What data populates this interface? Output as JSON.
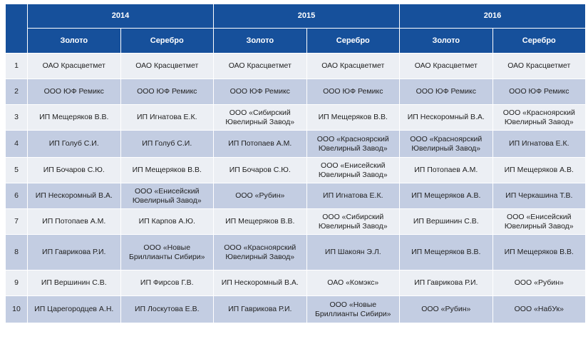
{
  "years": [
    "2014",
    "2015",
    "2016"
  ],
  "metals": [
    "Золото",
    "Серебро"
  ],
  "rows": [
    {
      "num": "1",
      "cells": [
        "ОАО Красцветмет",
        "ОАО Красцветмет",
        "ОАО Красцветмет",
        "ОАО Красцветмет",
        "ОАО Красцветмет",
        "ОАО Красцветмет"
      ]
    },
    {
      "num": "2",
      "cells": [
        "ООО ЮФ Ремикс",
        "ООО ЮФ Ремикс",
        "ООО ЮФ Ремикс",
        "ООО ЮФ Ремикс",
        "ООО ЮФ Ремикс",
        "ООО ЮФ Ремикс"
      ]
    },
    {
      "num": "3",
      "cells": [
        "ИП Мещеряков В.В.",
        "ИП Игнатова Е.К.",
        "ООО «Сибирский Ювелирный Завод»",
        "ИП Мещеряков В.В.",
        "ИП Нескоромный В.А.",
        "ООО «Красноярский Ювелирный Завод»"
      ]
    },
    {
      "num": "4",
      "cells": [
        "ИП Голуб С.И.",
        "ИП Голуб С.И.",
        "ИП Потопаев А.М.",
        "ООО «Красноярский Ювелирный Завод»",
        "ООО «Красноярский Ювелирный Завод»",
        "ИП Игнатова Е.К."
      ]
    },
    {
      "num": "5",
      "cells": [
        "ИП Бочаров С.Ю.",
        "ИП Мещеряков В.В.",
        "ИП Бочаров С.Ю.",
        "ООО «Енисейский Ювелирный Завод»",
        "ИП Потопаев А.М.",
        "ИП Мещеряков А.В."
      ]
    },
    {
      "num": "6",
      "cells": [
        "ИП Нескоромный В.А.",
        "ООО «Енисейский Ювелирный Завод»",
        "ООО «Рубин»",
        "ИП Игнатова Е.К.",
        "ИП Мещеряков А.В.",
        "ИП Черкашина Т.В."
      ]
    },
    {
      "num": "7",
      "cells": [
        "ИП Потопаев А.М.",
        "ИП Карпов А.Ю.",
        "ИП Мещеряков В.В.",
        "ООО «Сибирский Ювелирный Завод»",
        "ИП Вершинин С.В.",
        "ООО «Енисейский Ювелирный Завод»"
      ]
    },
    {
      "num": "8",
      "cells": [
        "ИП Гаврикова Р.И.",
        "ООО «Новые Бриллианты Сибири»",
        "ООО «Красноярский Ювелирный Завод»",
        "ИП Шакоян Э.Л.",
        "ИП Мещеряков В.В.",
        "ИП Мещеряков В.В."
      ]
    },
    {
      "num": "9",
      "cells": [
        "ИП Вершинин С.В.",
        "ИП Фирсов Г.В.",
        "ИП Нескоромный В.А.",
        "ОАО «Комэкс»",
        "ИП Гаврикова Р.И.",
        "ООО «Рубин»"
      ]
    },
    {
      "num": "10",
      "cells": [
        "ИП Царегородцев А.Н.",
        "ИП Лоскутова Е.В.",
        "ИП Гаврикова Р.И.",
        "ООО «Новые Бриллианты Сибири»",
        "ООО «Рубин»",
        "ООО «НабУк»"
      ]
    }
  ]
}
